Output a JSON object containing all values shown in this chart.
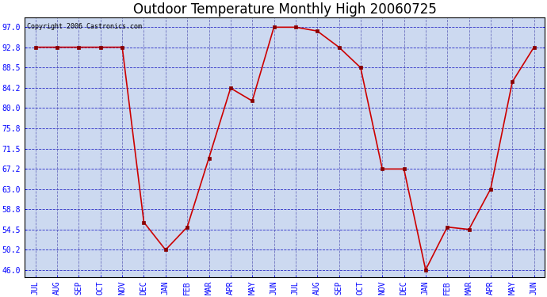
{
  "title": "Outdoor Temperature Monthly High 20060725",
  "copyright": "Copyright 2006 Castronics.com",
  "categories": [
    "JUL",
    "AUG",
    "SEP",
    "OCT",
    "NOV",
    "DEC",
    "JAN",
    "FEB",
    "MAR",
    "APR",
    "MAY",
    "JUN",
    "JUL",
    "AUG",
    "SEP",
    "OCT",
    "NOV",
    "DEC",
    "JAN",
    "FEB",
    "MAR",
    "APR",
    "MAY",
    "JUN"
  ],
  "values": [
    92.8,
    92.8,
    92.8,
    92.8,
    92.8,
    56.0,
    50.2,
    55.0,
    69.5,
    84.2,
    81.5,
    97.0,
    97.0,
    96.2,
    92.8,
    88.5,
    67.2,
    67.2,
    46.0,
    55.0,
    54.5,
    63.0,
    85.5,
    92.8
  ],
  "line_color": "#cc0000",
  "marker_color": "#880000",
  "background_color": "#ccd9f0",
  "grid_color_h": "#0000bb",
  "grid_color_v": "#555599",
  "title_fontsize": 12,
  "ylabel_values": [
    97.0,
    92.8,
    88.5,
    84.2,
    80.0,
    75.8,
    71.5,
    67.2,
    63.0,
    58.8,
    54.5,
    50.2,
    46.0
  ],
  "ylim": [
    44.5,
    99.0
  ],
  "fig_width": 6.9,
  "fig_height": 3.75,
  "dpi": 100
}
